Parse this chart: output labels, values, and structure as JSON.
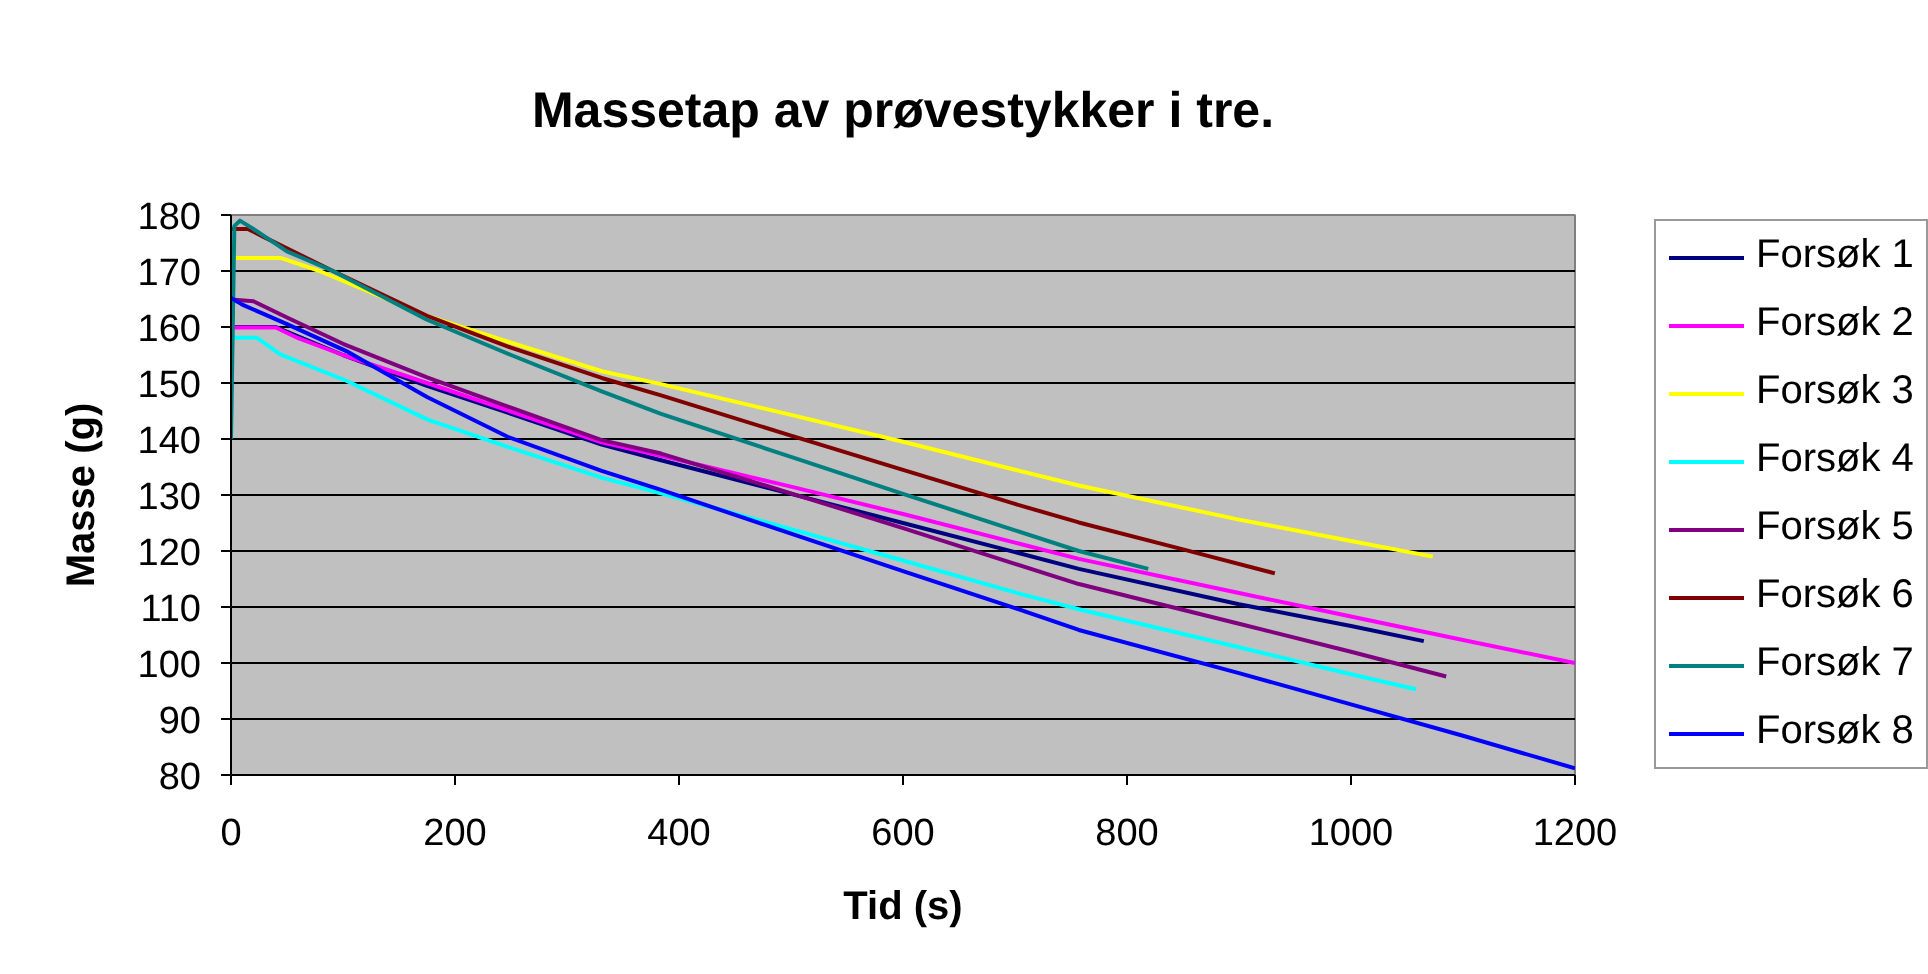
{
  "chart_data": {
    "type": "line",
    "title": "Massetap av prøvestykker i tre.",
    "xlabel": "Tid (s)",
    "ylabel": "Masse (g)",
    "xlim": [
      0,
      1200
    ],
    "ylim": [
      80,
      180
    ],
    "xticks": [
      0,
      200,
      400,
      600,
      800,
      1000,
      1200
    ],
    "yticks": [
      80,
      90,
      100,
      110,
      120,
      130,
      140,
      150,
      160,
      170,
      180
    ],
    "grid": "y",
    "legend": "right",
    "series": [
      {
        "name": "Forsøk 1",
        "color": "#000080",
        "x": [
          0,
          40,
          100,
          175,
          250,
          331,
          384,
          500,
          600,
          700,
          757,
          900,
          1000,
          1065
        ],
        "values": [
          160,
          160,
          155,
          149.5,
          144.5,
          139,
          136.2,
          130.2,
          125,
          119.8,
          116.8,
          110.5,
          106.6,
          103.9
        ]
      },
      {
        "name": "Forsøk 2",
        "color": "#ff00ff",
        "x": [
          0,
          40,
          60,
          100,
          175,
          250,
          331,
          384,
          500,
          600,
          700,
          757,
          900,
          1000,
          1100,
          1200
        ],
        "values": [
          159.9,
          159.9,
          158,
          155,
          150,
          144.9,
          139.4,
          137,
          131.5,
          126.6,
          121.5,
          118.6,
          112.5,
          108.3,
          104.1,
          100
        ]
      },
      {
        "name": "Forsøk 3",
        "color": "#ffff00",
        "x": [
          0,
          45,
          79,
          175,
          250,
          331,
          384,
          500,
          600,
          700,
          757,
          900,
          1000,
          1073
        ],
        "values": [
          172.3,
          172.3,
          170,
          162,
          157.2,
          152.1,
          149.8,
          144.3,
          139.5,
          134.5,
          131.7,
          125.6,
          121.8,
          119
        ]
      },
      {
        "name": "Forsøk 4",
        "color": "#00ffff",
        "x": [
          0,
          23,
          44,
          103,
          175,
          247,
          331,
          384,
          500,
          600,
          700,
          757,
          900,
          1000,
          1058
        ],
        "values": [
          158.1,
          158.1,
          155.1,
          150.4,
          143.5,
          138.6,
          133.1,
          130.3,
          123.9,
          118.3,
          112.6,
          109.6,
          102.8,
          98,
          95.3
        ]
      },
      {
        "name": "Forsøk 5",
        "color": "#800080",
        "x": [
          0,
          20,
          50,
          100,
          175,
          250,
          331,
          384,
          500,
          600,
          700,
          757,
          900,
          1000,
          1085
        ],
        "values": [
          164.9,
          164.6,
          161.7,
          157,
          151,
          145.6,
          139.8,
          137.4,
          130.3,
          124.1,
          117.7,
          114.1,
          107,
          102,
          97.6
        ]
      },
      {
        "name": "Forsøk 6",
        "color": "#800000",
        "x": [
          0,
          15,
          30,
          91,
          175,
          250,
          331,
          384,
          500,
          600,
          700,
          757,
          850,
          932
        ],
        "values": [
          177.5,
          177.5,
          176,
          170,
          162,
          156.3,
          150.9,
          147.8,
          140.6,
          134.5,
          128.4,
          125.1,
          120.3,
          116
        ]
      },
      {
        "name": "Forsøk 7",
        "color": "#008080",
        "x": [
          0,
          3,
          8,
          20,
          50,
          91,
          175,
          250,
          331,
          384,
          500,
          600,
          700,
          757,
          819
        ],
        "values": [
          140,
          178,
          179,
          177.5,
          173.5,
          170,
          161.3,
          155,
          148.5,
          144.5,
          136.8,
          130.2,
          123.7,
          120,
          116.8
        ]
      },
      {
        "name": "Forsøk 8",
        "color": "#0000ff",
        "x": [
          0,
          10,
          50,
          103,
          175,
          247,
          331,
          384,
          500,
          600,
          700,
          757,
          900,
          1000,
          1100,
          1200
        ],
        "values": [
          165.2,
          164,
          160.5,
          155.7,
          147.5,
          140.4,
          134.3,
          130.9,
          123.1,
          116.4,
          109.8,
          105.9,
          98.2,
          92.6,
          87,
          81.2
        ]
      }
    ]
  }
}
